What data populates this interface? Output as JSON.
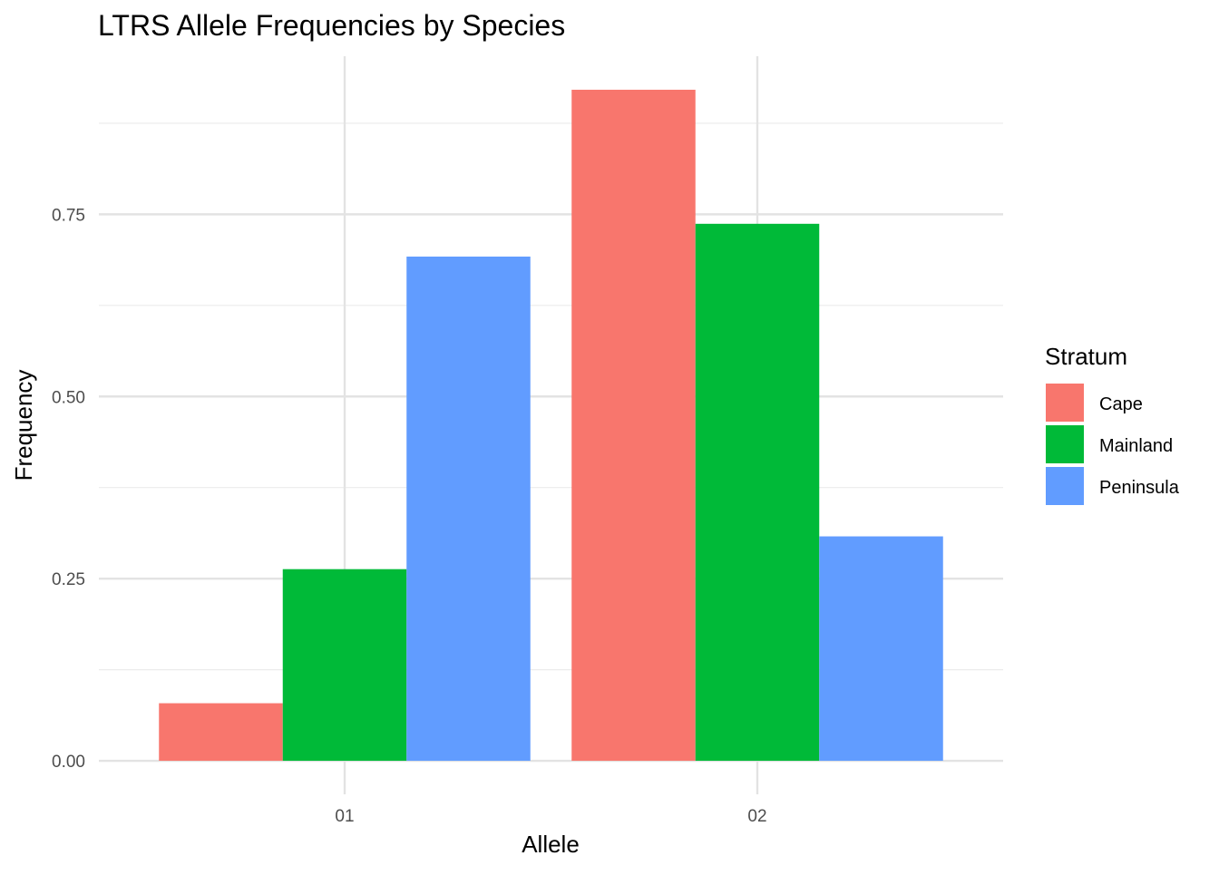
{
  "chart_data": {
    "type": "bar",
    "title": "LTRS Allele Frequencies by Species",
    "xlabel": "Allele",
    "ylabel": "Frequency",
    "categories": [
      "01",
      "02"
    ],
    "series": [
      {
        "name": "Cape",
        "color": "#F8766D",
        "values": [
          0.079,
          0.921
        ]
      },
      {
        "name": "Mainland",
        "color": "#00BA38",
        "values": [
          0.263,
          0.737
        ]
      },
      {
        "name": "Peninsula",
        "color": "#619CFF",
        "values": [
          0.692,
          0.308
        ]
      }
    ],
    "ylim": [
      -0.046,
      0.967
    ],
    "yticks": [
      0,
      0.25,
      0.5,
      0.75
    ],
    "ytick_labels": [
      "0.00",
      "0.25",
      "0.50",
      "0.75"
    ],
    "grid": true,
    "legend": {
      "title": "Stratum",
      "placement": "right"
    }
  }
}
